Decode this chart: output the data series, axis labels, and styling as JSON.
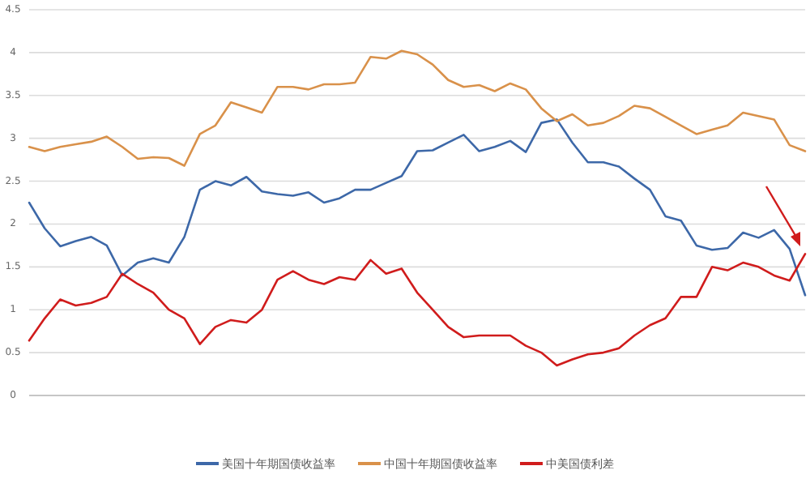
{
  "chart_data": {
    "type": "line",
    "legend": "bottom",
    "grid": "y",
    "tick_labels": "y",
    "ylim": [
      0,
      4.5
    ],
    "yticks": [
      0,
      0.5,
      1,
      1.5,
      2,
      2.5,
      3,
      3.5,
      4,
      4.5
    ],
    "categories": [
      null,
      null,
      null,
      null,
      null,
      null,
      null,
      null,
      null,
      null,
      null,
      null,
      null,
      null,
      null,
      null,
      null,
      null,
      null,
      null,
      null,
      null,
      null,
      null,
      null,
      null,
      null,
      null,
      null,
      null,
      null,
      null,
      null,
      null,
      null,
      null,
      null,
      null,
      null,
      null,
      null,
      null,
      null,
      null,
      null,
      null,
      null,
      null,
      null,
      null,
      null
    ],
    "series": [
      {
        "name": "美国十年期国债收益率",
        "color": "#3d68a8",
        "values": [
          2.25,
          1.95,
          1.74,
          1.8,
          1.85,
          1.75,
          1.4,
          1.55,
          1.6,
          1.55,
          1.85,
          2.4,
          2.5,
          2.45,
          2.55,
          2.38,
          2.35,
          2.33,
          2.37,
          2.25,
          2.3,
          2.4,
          2.4,
          2.48,
          2.56,
          2.85,
          2.86,
          2.95,
          3.04,
          2.85,
          2.9,
          2.97,
          2.84,
          3.18,
          3.22,
          2.95,
          2.72,
          2.72,
          2.67,
          2.53,
          2.4,
          2.09,
          2.04,
          1.75,
          1.7,
          1.72,
          1.9,
          1.84,
          1.93,
          1.71,
          1.17
        ]
      },
      {
        "name": "中国十年期国债收益率",
        "color": "#d9914a",
        "values": [
          2.9,
          2.85,
          2.9,
          2.93,
          2.96,
          3.02,
          2.9,
          2.76,
          2.78,
          2.77,
          2.68,
          3.05,
          3.15,
          3.42,
          3.36,
          3.3,
          3.6,
          3.6,
          3.57,
          3.63,
          3.63,
          3.65,
          3.95,
          3.93,
          4.02,
          3.98,
          3.86,
          3.68,
          3.6,
          3.62,
          3.55,
          3.64,
          3.57,
          3.35,
          3.2,
          3.28,
          3.15,
          3.18,
          3.26,
          3.38,
          3.35,
          3.25,
          3.15,
          3.05,
          3.1,
          3.15,
          3.3,
          3.26,
          3.22,
          2.92,
          2.85
        ]
      },
      {
        "name": "中美国债利差",
        "color": "#d01c1c",
        "values": [
          0.64,
          0.9,
          1.12,
          1.05,
          1.08,
          1.15,
          1.42,
          1.3,
          1.2,
          1.0,
          0.9,
          0.6,
          0.8,
          0.88,
          0.85,
          1.0,
          1.35,
          1.45,
          1.35,
          1.3,
          1.38,
          1.35,
          1.58,
          1.42,
          1.48,
          1.2,
          1.0,
          0.8,
          0.68,
          0.7,
          0.7,
          0.7,
          0.58,
          0.5,
          0.35,
          0.42,
          0.48,
          0.5,
          0.55,
          0.7,
          0.82,
          0.9,
          1.15,
          1.15,
          1.5,
          1.46,
          1.55,
          1.5,
          1.4,
          1.34,
          1.65
        ]
      }
    ]
  }
}
